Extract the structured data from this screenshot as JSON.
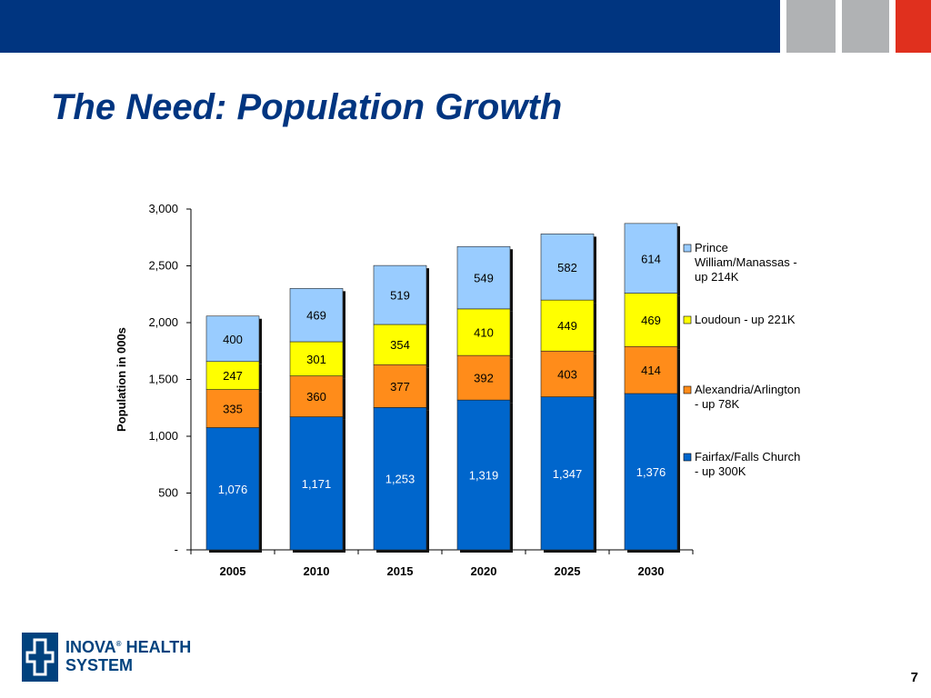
{
  "slide": {
    "title": "The Need:  Population Growth",
    "page_number": "7"
  },
  "logo": {
    "line1": "INOVA",
    "registered": "®",
    "line1b": " HEALTH",
    "line2": "SYSTEM"
  },
  "colors": {
    "header_bar": "#003580",
    "accent_grey": "#b0b2b4",
    "accent_red": "#e0301e"
  },
  "chart_data": {
    "type": "bar",
    "stacked": true,
    "title": "",
    "xlabel": "",
    "ylabel": "Population in 000s",
    "ylim": [
      0,
      3000
    ],
    "yticks": [
      0,
      500,
      1000,
      1500,
      2000,
      2500,
      3000
    ],
    "ytick_labels": [
      "-",
      "500",
      "1,000",
      "1,500",
      "2,000",
      "2,500",
      "3,000"
    ],
    "categories": [
      "2005",
      "2010",
      "2015",
      "2020",
      "2025",
      "2030"
    ],
    "series": [
      {
        "name": "Fairfax/Falls Church - up 300K",
        "color": "#0066cc",
        "label_color": "#ffffff",
        "values": [
          1076,
          1171,
          1253,
          1319,
          1347,
          1376
        ],
        "labels": [
          "1,076",
          "1,171",
          "1,253",
          "1,319",
          "1,347",
          "1,376"
        ]
      },
      {
        "name": "Alexandria/Arlington - up 78K",
        "color": "#ff8c1a",
        "label_color": "#000000",
        "values": [
          335,
          360,
          377,
          392,
          403,
          414
        ],
        "labels": [
          "335",
          "360",
          "377",
          "392",
          "403",
          "414"
        ]
      },
      {
        "name": "Loudoun - up 221K",
        "color": "#ffff00",
        "label_color": "#000000",
        "values": [
          247,
          301,
          354,
          410,
          449,
          469
        ],
        "labels": [
          "247",
          "301",
          "354",
          "410",
          "449",
          "469"
        ]
      },
      {
        "name": "Prince William/Manassas - up 214K",
        "color": "#99ccff",
        "label_color": "#000000",
        "values": [
          400,
          469,
          519,
          549,
          582,
          614
        ],
        "labels": [
          "400",
          "469",
          "519",
          "549",
          "582",
          "614"
        ]
      }
    ],
    "legend_position": "right",
    "grid": false
  }
}
